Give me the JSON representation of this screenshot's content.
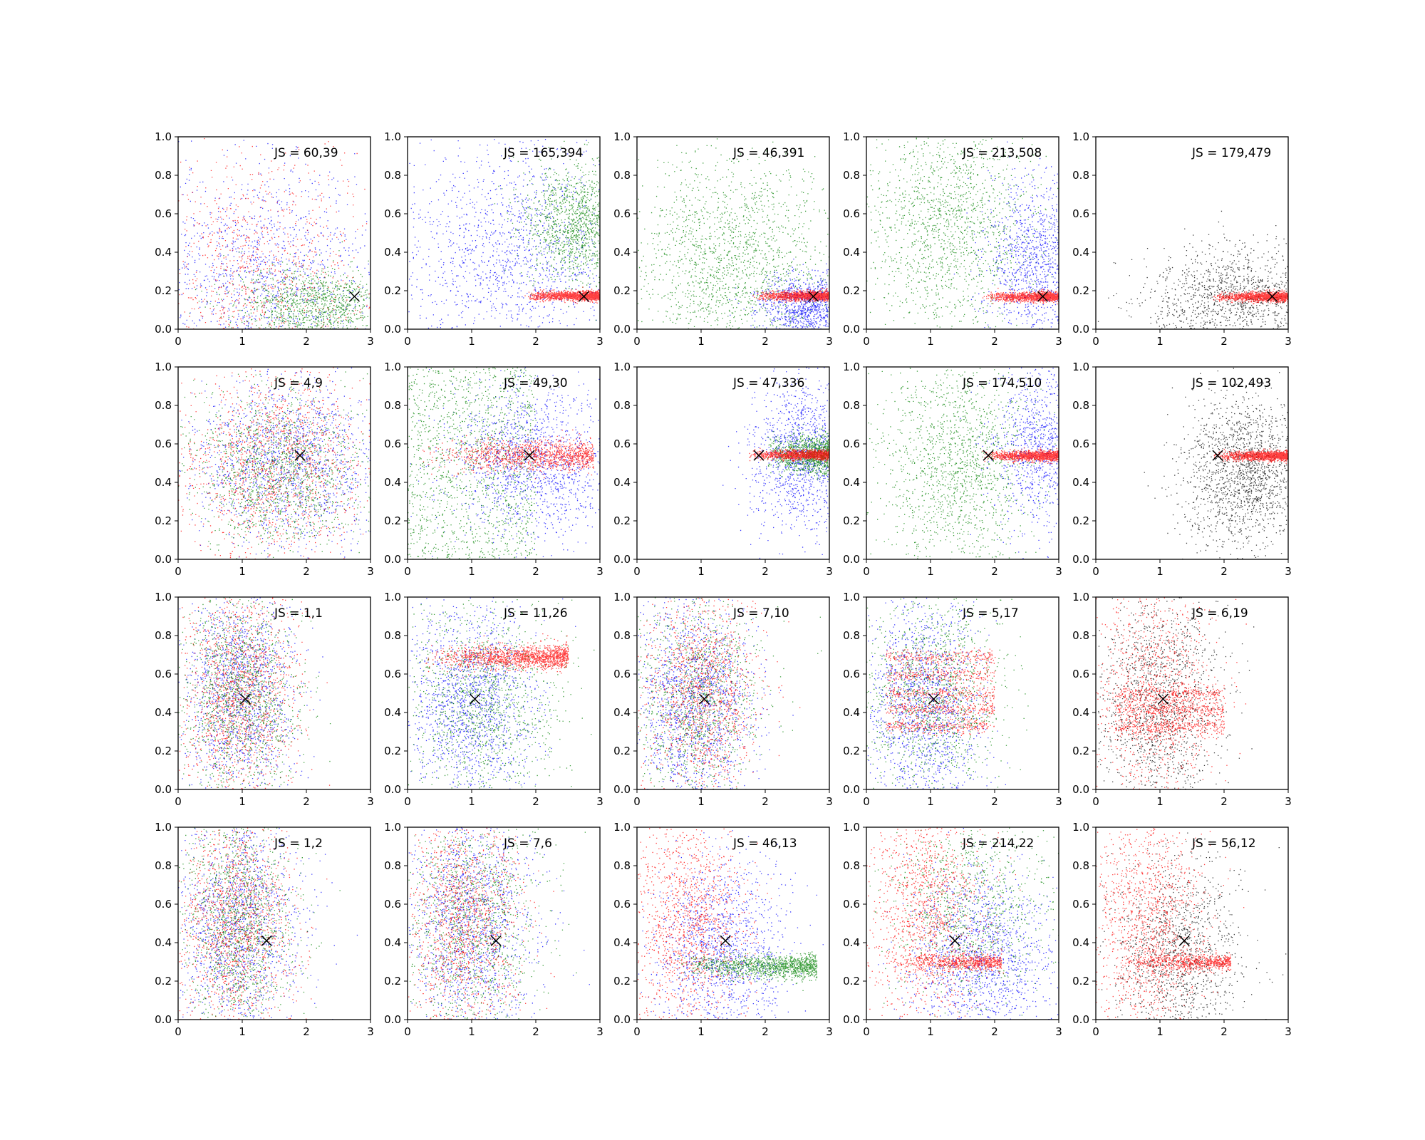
{
  "figure": {
    "rows": 4,
    "cols": 5,
    "label_prefix": "JS = "
  },
  "chart_data": {
    "type": "scatter",
    "grid": false,
    "xlim": [
      0,
      3
    ],
    "ylim": [
      0,
      1
    ],
    "xticks": [
      "0",
      "1",
      "2",
      "3"
    ],
    "yticks": [
      "0.0",
      "0.2",
      "0.4",
      "0.6",
      "0.8",
      "1.0"
    ],
    "colors": {
      "blue": "#0000ff",
      "green": "#008000",
      "red": "#ff0000",
      "black": "#000000"
    },
    "marker": {
      "symbol": "x",
      "color": "#000000"
    },
    "panels": [
      {
        "label": "60,39",
        "marker": [
          2.75,
          0.17
        ],
        "clouds": [
          {
            "color": "blue",
            "n": 1300,
            "shape": "normal",
            "mx": 1.3,
            "sx": 0.85,
            "my": 0.3,
            "sy": 0.3,
            "seed": 11
          },
          {
            "color": "red",
            "n": 1100,
            "shape": "normal",
            "mx": 1.2,
            "sx": 0.9,
            "my": 0.3,
            "sy": 0.32,
            "seed": 12
          },
          {
            "color": "green",
            "n": 1200,
            "shape": "normal",
            "mx": 2.1,
            "sx": 0.6,
            "my": 0.12,
            "sy": 0.1,
            "seed": 13
          }
        ]
      },
      {
        "label": "165,394",
        "marker": [
          2.75,
          0.17
        ],
        "clouds": [
          {
            "color": "blue",
            "n": 1500,
            "shape": "normal",
            "mx": 1.6,
            "sx": 0.9,
            "my": 0.4,
            "sy": 0.3,
            "seed": 21
          },
          {
            "color": "green",
            "n": 1300,
            "shape": "normal",
            "mx": 2.6,
            "sx": 0.4,
            "my": 0.55,
            "sy": 0.15,
            "seed": 22
          },
          {
            "color": "red",
            "n": 1800,
            "shape": "band",
            "x0": 1.8,
            "x1": 3.2,
            "my": 0.175,
            "sy": 0.012,
            "seed": 23
          }
        ]
      },
      {
        "label": "46,391",
        "marker": [
          2.75,
          0.17
        ],
        "clouds": [
          {
            "color": "green",
            "n": 1800,
            "shape": "normal",
            "mx": 1.5,
            "sx": 0.8,
            "my": 0.35,
            "sy": 0.28,
            "seed": 31
          },
          {
            "color": "blue",
            "n": 1200,
            "shape": "normal",
            "mx": 2.7,
            "sx": 0.4,
            "my": 0.12,
            "sy": 0.08,
            "seed": 32
          },
          {
            "color": "red",
            "n": 1800,
            "shape": "band",
            "x0": 1.8,
            "x1": 3.2,
            "my": 0.175,
            "sy": 0.012,
            "seed": 33
          }
        ]
      },
      {
        "label": "213,508",
        "marker": [
          2.75,
          0.17
        ],
        "clouds": [
          {
            "color": "green",
            "n": 1600,
            "shape": "normal",
            "mx": 1.3,
            "sx": 0.65,
            "my": 0.55,
            "sy": 0.3,
            "seed": 41
          },
          {
            "color": "blue",
            "n": 1300,
            "shape": "normal",
            "mx": 2.7,
            "sx": 0.45,
            "my": 0.35,
            "sy": 0.22,
            "seed": 42
          },
          {
            "color": "red",
            "n": 1800,
            "shape": "band",
            "x0": 1.8,
            "x1": 3.2,
            "my": 0.17,
            "sy": 0.012,
            "seed": 43
          }
        ]
      },
      {
        "label": "179,479",
        "marker": [
          2.75,
          0.17
        ],
        "clouds": [
          {
            "color": "black",
            "n": 1300,
            "shape": "normal",
            "mx": 2.1,
            "sx": 0.7,
            "my": 0.15,
            "sy": 0.14,
            "seed": 51
          },
          {
            "color": "red",
            "n": 1800,
            "shape": "band",
            "x0": 1.8,
            "x1": 3.2,
            "my": 0.17,
            "sy": 0.012,
            "seed": 52
          }
        ]
      },
      {
        "label": "4,9",
        "marker": [
          1.9,
          0.54
        ],
        "clouds": [
          {
            "color": "blue",
            "n": 1500,
            "shape": "normal",
            "mx": 1.7,
            "sx": 0.75,
            "my": 0.5,
            "sy": 0.22,
            "seed": 61
          },
          {
            "color": "red",
            "n": 1500,
            "shape": "normal",
            "mx": 1.5,
            "sx": 0.75,
            "my": 0.5,
            "sy": 0.24,
            "seed": 62
          },
          {
            "color": "green",
            "n": 1400,
            "shape": "normal",
            "mx": 1.6,
            "sx": 0.7,
            "my": 0.45,
            "sy": 0.2,
            "seed": 63
          }
        ]
      },
      {
        "label": "49,30",
        "marker": [
          1.9,
          0.54
        ],
        "clouds": [
          {
            "color": "blue",
            "n": 1500,
            "shape": "normal",
            "mx": 2.0,
            "sx": 0.65,
            "my": 0.5,
            "sy": 0.2,
            "seed": 71
          },
          {
            "color": "green",
            "n": 1400,
            "shape": "uniform",
            "x0": 0.0,
            "x1": 2.0,
            "y0": 0.0,
            "y1": 1.0,
            "seed": 72
          },
          {
            "color": "red",
            "n": 1200,
            "shape": "band",
            "x0": 0.2,
            "x1": 2.9,
            "my": 0.54,
            "sy": 0.04,
            "seed": 73
          }
        ]
      },
      {
        "label": "47,336",
        "marker": [
          1.9,
          0.54
        ],
        "clouds": [
          {
            "color": "blue",
            "n": 1300,
            "shape": "normal",
            "mx": 2.6,
            "sx": 0.4,
            "my": 0.55,
            "sy": 0.2,
            "seed": 81
          },
          {
            "color": "green",
            "n": 1500,
            "shape": "band",
            "x0": 2.0,
            "x1": 3.2,
            "my": 0.55,
            "sy": 0.05,
            "seed": 82
          },
          {
            "color": "red",
            "n": 1800,
            "shape": "band",
            "x0": 1.7,
            "x1": 3.2,
            "my": 0.545,
            "sy": 0.012,
            "seed": 83
          }
        ]
      },
      {
        "label": "174,510",
        "marker": [
          1.9,
          0.54
        ],
        "clouds": [
          {
            "color": "green",
            "n": 1600,
            "shape": "normal",
            "mx": 1.4,
            "sx": 0.6,
            "my": 0.5,
            "sy": 0.3,
            "seed": 91
          },
          {
            "color": "blue",
            "n": 1000,
            "shape": "normal",
            "mx": 2.7,
            "sx": 0.35,
            "my": 0.6,
            "sy": 0.22,
            "seed": 92
          },
          {
            "color": "red",
            "n": 1800,
            "shape": "band",
            "x0": 1.8,
            "x1": 3.2,
            "my": 0.54,
            "sy": 0.012,
            "seed": 93
          }
        ]
      },
      {
        "label": "102,493",
        "marker": [
          1.9,
          0.54
        ],
        "clouds": [
          {
            "color": "black",
            "n": 1700,
            "shape": "normal",
            "mx": 2.3,
            "sx": 0.45,
            "my": 0.45,
            "sy": 0.2,
            "seed": 101
          },
          {
            "color": "red",
            "n": 1800,
            "shape": "band",
            "x0": 1.8,
            "x1": 3.2,
            "my": 0.54,
            "sy": 0.012,
            "seed": 102
          }
        ]
      },
      {
        "label": "1,1",
        "marker": [
          1.05,
          0.47
        ],
        "clouds": [
          {
            "color": "blue",
            "n": 1500,
            "shape": "normal",
            "mx": 0.95,
            "sx": 0.45,
            "my": 0.5,
            "sy": 0.28,
            "seed": 111
          },
          {
            "color": "red",
            "n": 1500,
            "shape": "normal",
            "mx": 0.95,
            "sx": 0.45,
            "my": 0.5,
            "sy": 0.28,
            "seed": 112
          },
          {
            "color": "green",
            "n": 1400,
            "shape": "normal",
            "mx": 0.95,
            "sx": 0.45,
            "my": 0.5,
            "sy": 0.28,
            "seed": 113
          }
        ]
      },
      {
        "label": "11,26",
        "marker": [
          1.05,
          0.47
        ],
        "clouds": [
          {
            "color": "blue",
            "n": 1500,
            "shape": "normal",
            "mx": 1.0,
            "sx": 0.5,
            "my": 0.45,
            "sy": 0.27,
            "seed": 121
          },
          {
            "color": "green",
            "n": 1300,
            "shape": "normal",
            "mx": 1.2,
            "sx": 0.6,
            "my": 0.45,
            "sy": 0.27,
            "seed": 122
          },
          {
            "color": "red",
            "n": 1400,
            "shape": "band",
            "x0": 0.2,
            "x1": 2.5,
            "my": 0.69,
            "sy": 0.03,
            "seed": 123
          }
        ]
      },
      {
        "label": "7,10",
        "marker": [
          1.05,
          0.47
        ],
        "clouds": [
          {
            "color": "blue",
            "n": 1600,
            "shape": "normal",
            "mx": 0.9,
            "sx": 0.45,
            "my": 0.45,
            "sy": 0.28,
            "seed": 131
          },
          {
            "color": "green",
            "n": 1300,
            "shape": "normal",
            "mx": 0.95,
            "sx": 0.5,
            "my": 0.5,
            "sy": 0.28,
            "seed": 132
          },
          {
            "color": "red",
            "n": 1300,
            "shape": "normal",
            "mx": 1.0,
            "sx": 0.45,
            "my": 0.5,
            "sy": 0.25,
            "seed": 133
          }
        ]
      },
      {
        "label": "5,17",
        "marker": [
          1.05,
          0.47
        ],
        "clouds": [
          {
            "color": "blue",
            "n": 1500,
            "shape": "normal",
            "mx": 0.9,
            "sx": 0.45,
            "my": 0.45,
            "sy": 0.28,
            "seed": 141
          },
          {
            "color": "green",
            "n": 1300,
            "shape": "normal",
            "mx": 1.0,
            "sx": 0.55,
            "my": 0.5,
            "sy": 0.27,
            "seed": 142
          },
          {
            "color": "red",
            "n": 1300,
            "shape": "stripes",
            "x0": 0.3,
            "x1": 2.0,
            "levels": [
              0.33,
              0.42,
              0.5,
              0.6,
              0.69
            ],
            "sy": 0.02,
            "seed": 143
          }
        ]
      },
      {
        "label": "6,19",
        "marker": [
          1.05,
          0.47
        ],
        "clouds": [
          {
            "color": "black",
            "n": 1500,
            "shape": "normal",
            "mx": 0.95,
            "sx": 0.5,
            "my": 0.45,
            "sy": 0.28,
            "seed": 151
          },
          {
            "color": "red",
            "n": 1100,
            "shape": "normal",
            "mx": 0.9,
            "sx": 0.5,
            "my": 0.5,
            "sy": 0.3,
            "seed": 152
          },
          {
            "color": "red",
            "n": 900,
            "shape": "stripes",
            "x0": 0.3,
            "x1": 2.0,
            "levels": [
              0.33,
              0.42,
              0.5
            ],
            "sy": 0.02,
            "seed": 153
          }
        ]
      },
      {
        "label": "1,2",
        "marker": [
          1.38,
          0.41
        ],
        "clouds": [
          {
            "color": "blue",
            "n": 1500,
            "shape": "normal",
            "mx": 0.95,
            "sx": 0.5,
            "my": 0.5,
            "sy": 0.3,
            "seed": 161
          },
          {
            "color": "red",
            "n": 1500,
            "shape": "normal",
            "mx": 0.9,
            "sx": 0.45,
            "my": 0.5,
            "sy": 0.3,
            "seed": 162
          },
          {
            "color": "green",
            "n": 1400,
            "shape": "normal",
            "mx": 0.95,
            "sx": 0.45,
            "my": 0.5,
            "sy": 0.3,
            "seed": 163
          }
        ]
      },
      {
        "label": "7,6",
        "marker": [
          1.38,
          0.41
        ],
        "clouds": [
          {
            "color": "blue",
            "n": 1500,
            "shape": "normal",
            "mx": 0.95,
            "sx": 0.5,
            "my": 0.5,
            "sy": 0.3,
            "seed": 171
          },
          {
            "color": "green",
            "n": 1300,
            "shape": "normal",
            "mx": 1.0,
            "sx": 0.55,
            "my": 0.5,
            "sy": 0.3,
            "seed": 172
          },
          {
            "color": "red",
            "n": 1300,
            "shape": "normal",
            "mx": 0.9,
            "sx": 0.45,
            "my": 0.5,
            "sy": 0.3,
            "seed": 173
          }
        ]
      },
      {
        "label": "46,13",
        "marker": [
          1.38,
          0.41
        ],
        "clouds": [
          {
            "color": "blue",
            "n": 1400,
            "shape": "normal",
            "mx": 1.3,
            "sx": 0.5,
            "my": 0.35,
            "sy": 0.25,
            "seed": 181
          },
          {
            "color": "red",
            "n": 1400,
            "shape": "normal",
            "mx": 0.8,
            "sx": 0.45,
            "my": 0.5,
            "sy": 0.3,
            "seed": 182
          },
          {
            "color": "green",
            "n": 1200,
            "shape": "band",
            "x0": 0.6,
            "x1": 2.8,
            "my": 0.28,
            "sy": 0.03,
            "seed": 183
          }
        ]
      },
      {
        "label": "214,22",
        "marker": [
          1.38,
          0.41
        ],
        "clouds": [
          {
            "color": "blue",
            "n": 1500,
            "shape": "normal",
            "mx": 1.8,
            "sx": 0.55,
            "my": 0.3,
            "sy": 0.25,
            "seed": 191
          },
          {
            "color": "green",
            "n": 1000,
            "shape": "normal",
            "mx": 1.6,
            "sx": 0.6,
            "my": 0.6,
            "sy": 0.25,
            "seed": 192
          },
          {
            "color": "red",
            "n": 1300,
            "shape": "normal",
            "mx": 0.9,
            "sx": 0.45,
            "my": 0.55,
            "sy": 0.3,
            "seed": 193
          },
          {
            "color": "red",
            "n": 700,
            "shape": "band",
            "x0": 0.4,
            "x1": 2.1,
            "my": 0.3,
            "sy": 0.02,
            "seed": 194
          }
        ]
      },
      {
        "label": "56,12",
        "marker": [
          1.38,
          0.41
        ],
        "clouds": [
          {
            "color": "black",
            "n": 1300,
            "shape": "normal",
            "mx": 1.3,
            "sx": 0.5,
            "my": 0.35,
            "sy": 0.25,
            "seed": 201
          },
          {
            "color": "red",
            "n": 1400,
            "shape": "normal",
            "mx": 0.8,
            "sx": 0.45,
            "my": 0.5,
            "sy": 0.3,
            "seed": 202
          },
          {
            "color": "red",
            "n": 700,
            "shape": "band",
            "x0": 0.4,
            "x1": 2.1,
            "my": 0.3,
            "sy": 0.02,
            "seed": 203
          }
        ]
      }
    ]
  }
}
